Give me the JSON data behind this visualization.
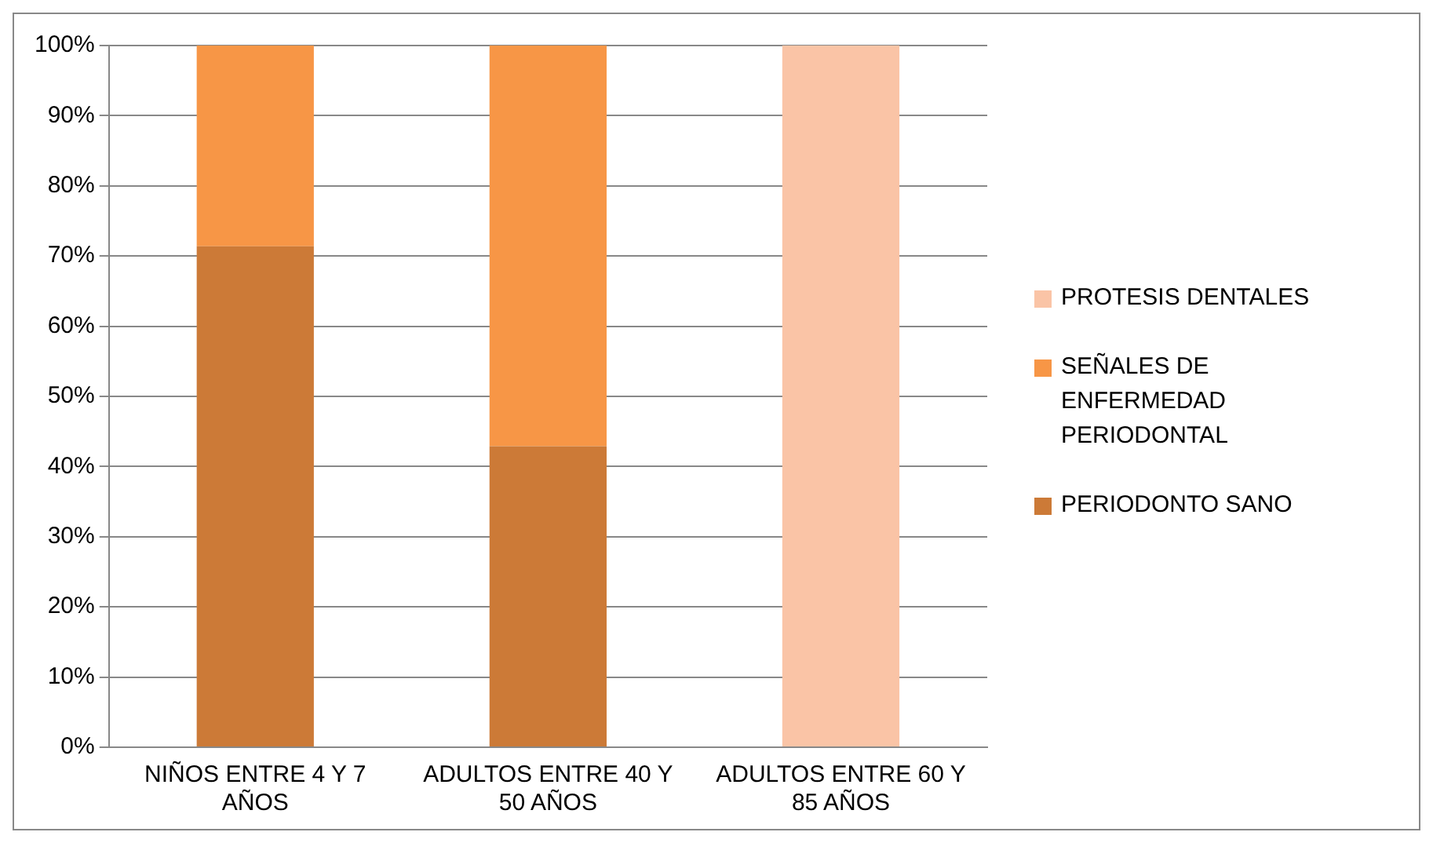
{
  "chart_data": {
    "type": "bar",
    "stacked": true,
    "categories": [
      "NIÑOS ENTRE 4 Y 7 AÑOS",
      "ADULTOS ENTRE 40 Y 50 AÑOS",
      "ADULTOS ENTRE 60 Y 85 AÑOS"
    ],
    "series": [
      {
        "name": "PERIODONTO SANO",
        "color": "#cc7a37",
        "values": [
          71.4,
          42.9,
          0
        ]
      },
      {
        "name": "SEÑALES DE ENFERMEDAD PERIODONTAL",
        "color": "#f79646",
        "values": [
          28.6,
          57.1,
          0
        ]
      },
      {
        "name": "PROTESIS DENTALES",
        "color": "#fac4a6",
        "values": [
          0,
          0,
          100
        ]
      }
    ],
    "ylim": [
      0,
      100
    ],
    "yticks": [
      {
        "value": 0,
        "label": "0%"
      },
      {
        "value": 10,
        "label": "10%"
      },
      {
        "value": 20,
        "label": "20%"
      },
      {
        "value": 30,
        "label": "30%"
      },
      {
        "value": 40,
        "label": "40%"
      },
      {
        "value": 50,
        "label": "50%"
      },
      {
        "value": 60,
        "label": "60%"
      },
      {
        "value": 70,
        "label": "70%"
      },
      {
        "value": 80,
        "label": "80%"
      },
      {
        "value": 90,
        "label": "90%"
      },
      {
        "value": 100,
        "label": "100%"
      }
    ],
    "grid": "y",
    "legend": "right"
  }
}
